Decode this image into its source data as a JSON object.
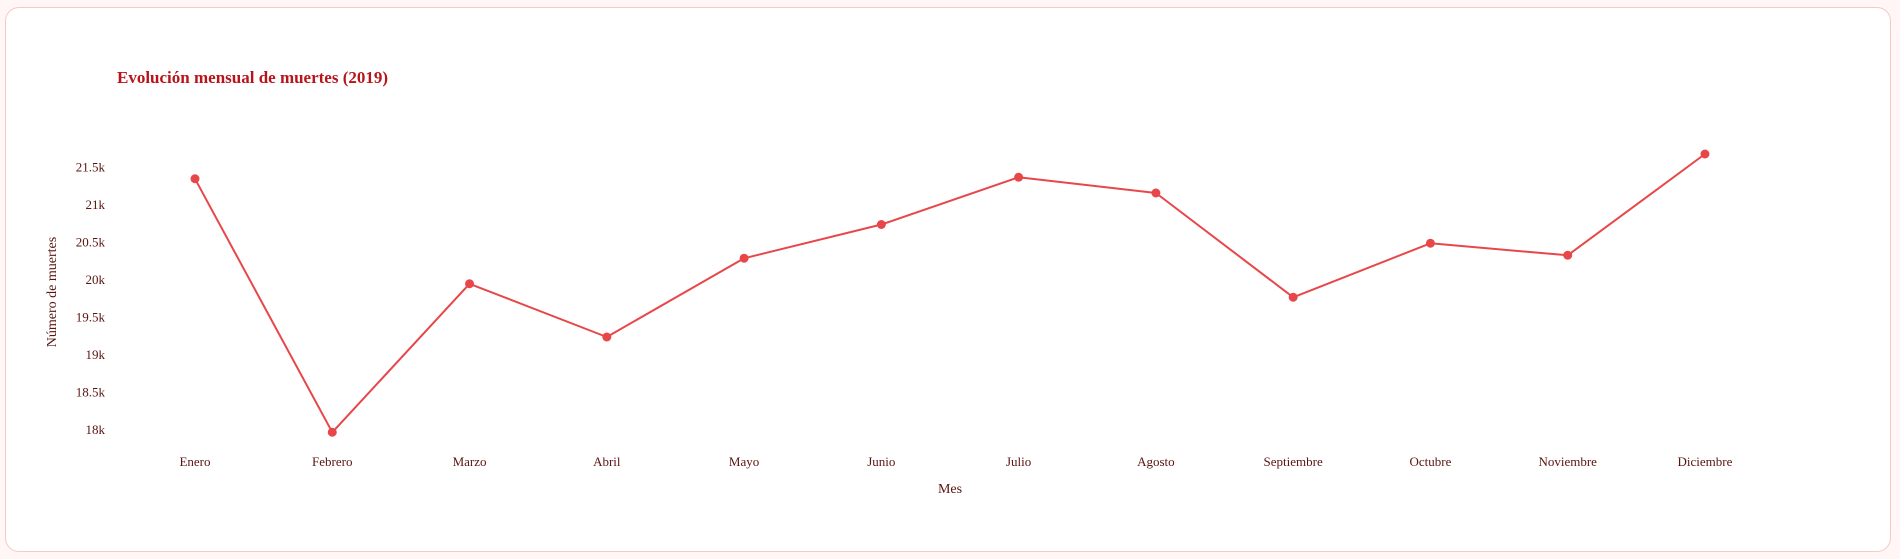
{
  "colors": {
    "title": "#b8141b",
    "line": "#e8474a",
    "point": "#e8474a",
    "text": "#5a1410",
    "card_border": "#f6c9c5",
    "background": "#fff6f5"
  },
  "chart_data": {
    "type": "line",
    "title": "Evolución mensual de muertes (2019)",
    "xlabel": "Mes",
    "ylabel": "Número de muertes",
    "categories": [
      "Enero",
      "Febrero",
      "Marzo",
      "Abril",
      "Mayo",
      "Junio",
      "Julio",
      "Agosto",
      "Septiembre",
      "Octubre",
      "Noviembre",
      "Diciembre"
    ],
    "series": [
      {
        "values": [
          21350,
          17970,
          19950,
          19240,
          20290,
          20740,
          21370,
          21160,
          19770,
          20490,
          20330,
          21680
        ]
      }
    ],
    "ylim": [
      18000,
      21500
    ],
    "yticks": [
      18000,
      18500,
      19000,
      19500,
      20000,
      20500,
      21000,
      21500
    ],
    "ytick_labels": [
      "18k",
      "18.5k",
      "19k",
      "19.5k",
      "20k",
      "20.5k",
      "21k",
      "21.5k"
    ],
    "grid": false,
    "legend": "none"
  }
}
